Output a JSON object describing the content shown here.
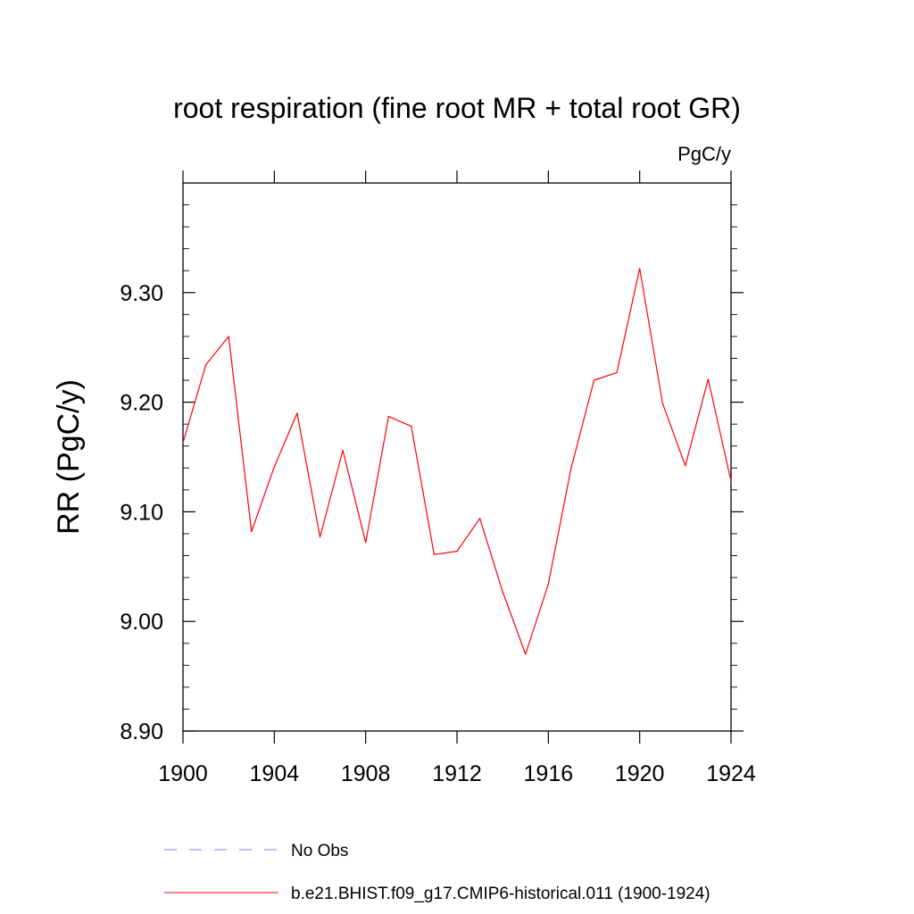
{
  "chart_data": {
    "type": "line",
    "title": "root respiration (fine root MR + total root GR)",
    "units": "PgC/y",
    "ylabel": "RR  (PgC/y)",
    "xlabel": "",
    "xlim": [
      1900,
      1924
    ],
    "ylim": [
      8.9,
      9.4
    ],
    "x_ticks": [
      1900,
      1904,
      1908,
      1912,
      1916,
      1920,
      1924
    ],
    "y_ticks": [
      8.9,
      9.0,
      9.1,
      9.2,
      9.3
    ],
    "y_tick_labels": [
      "8.90",
      "9.00",
      "9.10",
      "9.20",
      "9.30"
    ],
    "x_tick_labels": [
      "1900",
      "1904",
      "1908",
      "1912",
      "1916",
      "1920",
      "1924"
    ],
    "grid": false,
    "legend_position": "bottom",
    "series": [
      {
        "name": "b.e21.BHIST.f09_g17.CMIP6-historical.011 (1900-1924)",
        "color": "#ff0000",
        "style": "solid",
        "x": [
          1900,
          1901,
          1902,
          1903,
          1904,
          1905,
          1906,
          1907,
          1908,
          1909,
          1910,
          1911,
          1912,
          1913,
          1914,
          1915,
          1916,
          1917,
          1918,
          1919,
          1920,
          1921,
          1922,
          1923,
          1924
        ],
        "values": [
          9.163,
          9.234,
          9.26,
          9.082,
          9.141,
          9.19,
          9.077,
          9.156,
          9.072,
          9.187,
          9.178,
          9.061,
          9.064,
          9.094,
          9.027,
          8.97,
          9.034,
          9.14,
          9.22,
          9.227,
          9.322,
          9.199,
          9.142,
          9.221,
          9.128
        ]
      }
    ],
    "legend": [
      {
        "label": "No Obs",
        "color": "#8080ff",
        "style": "dashed"
      },
      {
        "label": "b.e21.BHIST.f09_g17.CMIP6-historical.011 (1900-1924)",
        "color": "#ff0000",
        "style": "solid"
      }
    ]
  }
}
